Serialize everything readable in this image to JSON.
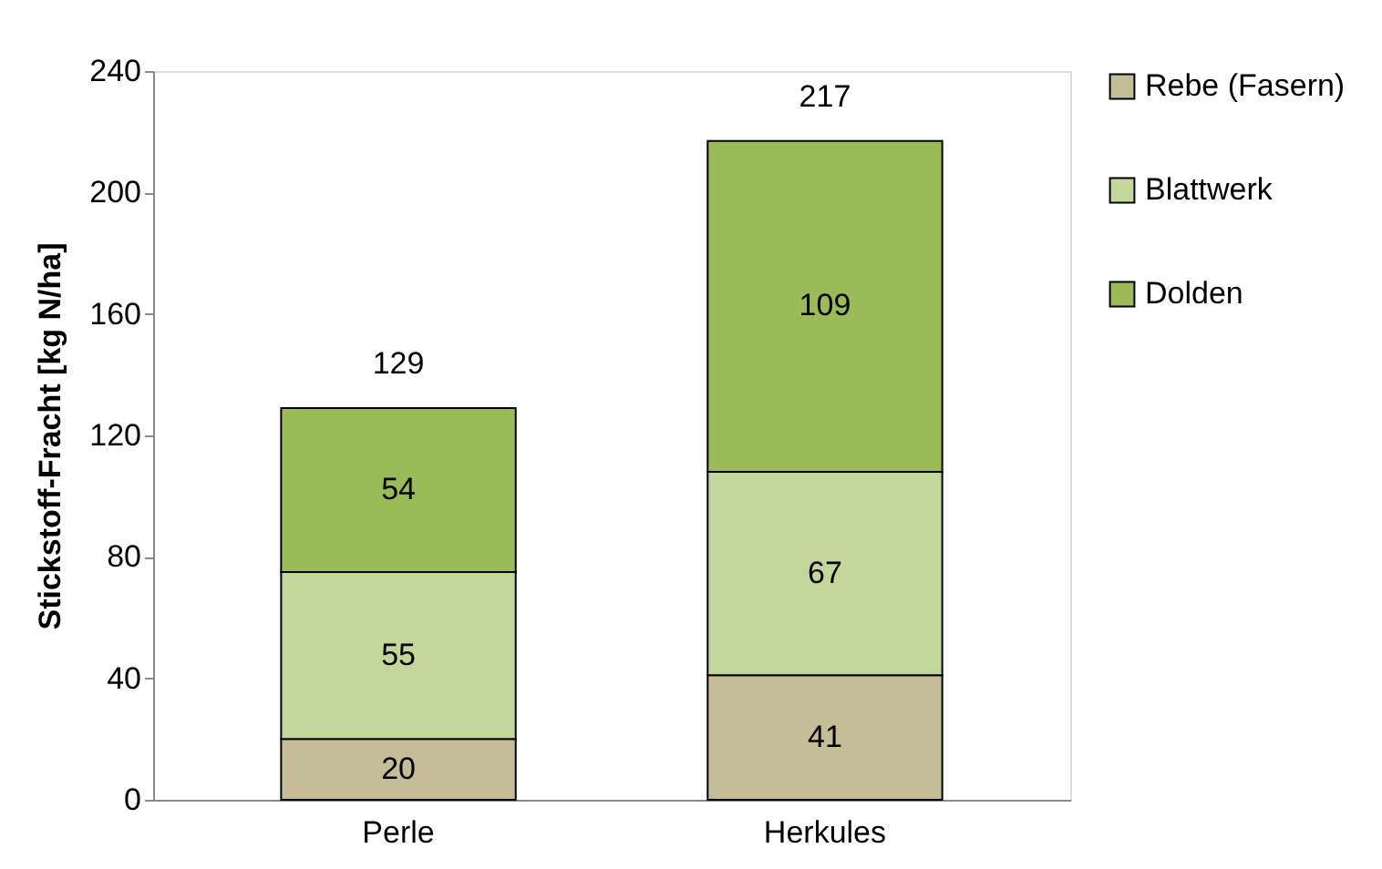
{
  "chart_data": {
    "type": "bar",
    "stacked": true,
    "ylabel": "Stickstoff-Fracht [kg N/ha]",
    "categories": [
      "Perle",
      "Herkules"
    ],
    "series": [
      {
        "name": "Rebe (Fasern)",
        "color": "#c4bd97",
        "values": [
          20,
          41
        ]
      },
      {
        "name": "Blattwerk",
        "color": "#c3d69b",
        "values": [
          55,
          67
        ]
      },
      {
        "name": "Dolden",
        "color": "#9bbb59",
        "values": [
          54,
          109
        ]
      }
    ],
    "ylim": [
      0,
      240
    ],
    "yticks": [
      0,
      40,
      80,
      120,
      160,
      200,
      240
    ],
    "data_labels": true,
    "totals": [
      "129",
      "217"
    ],
    "grid": false,
    "legend": "right"
  }
}
